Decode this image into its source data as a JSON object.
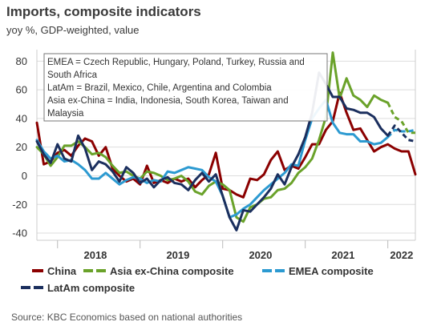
{
  "chart_data": {
    "type": "line",
    "title": "Imports, composite indicators",
    "subtitle": "yoy %, GDP-weighted, value",
    "source": "Source: KBC Economics based on national authorities",
    "ylim": [
      -45,
      88
    ],
    "yticks": [
      80,
      60,
      40,
      20,
      0,
      -20,
      -40
    ],
    "x_start": "2017-10",
    "x_end": "2022-05",
    "year_labels": [
      "2018",
      "2019",
      "2020",
      "2021",
      "2022"
    ],
    "grid": true,
    "legend_position": "bottom",
    "annotation_lines": [
      "EMEA = Czech Republic, Hungary, Poland, Turkey, Russia and",
      "South Africa",
      "LatAm = Brazil, Mexico, Chile, Argentina and Colombia",
      "Asia ex-China = India, Indonesia, South Korea, Taiwan and",
      "Malaysia"
    ],
    "series": [
      {
        "name": "China",
        "color": "#8b0000",
        "dash": "solid",
        "values": [
          37,
          8,
          10,
          16,
          18,
          14,
          21,
          26,
          24,
          14,
          20,
          5,
          0,
          -4,
          -2,
          -6,
          7,
          -5,
          -3,
          -5,
          -2,
          -4,
          -2,
          -8,
          -3,
          1,
          16,
          -9,
          -10,
          -13,
          -15,
          -2,
          -3,
          1,
          11,
          17,
          4,
          7,
          5,
          13,
          22,
          22,
          32,
          38,
          58,
          44,
          32,
          33,
          25,
          17,
          20,
          22,
          19,
          17,
          17,
          1
        ]
      },
      {
        "name": "Asia ex-China composite",
        "color": "#6aa22a",
        "dash": "dashed-end",
        "values": [
          20,
          15,
          7,
          13,
          21,
          21,
          24,
          20,
          15,
          16,
          13,
          7,
          2,
          3,
          0,
          -2,
          3,
          2,
          0,
          -3,
          -2,
          0,
          -4,
          -11,
          -13,
          -7,
          -4,
          -6,
          -10,
          -29,
          -32,
          -22,
          -20,
          -16,
          -15,
          -10,
          -9,
          -5,
          2,
          6,
          12,
          25,
          41,
          86,
          54,
          68,
          56,
          53,
          48,
          56,
          53,
          51,
          41,
          38,
          30,
          30
        ]
      },
      {
        "name": "EMEA composite",
        "color": "#2c9ad1",
        "dash": "dashed-end",
        "values": [
          25,
          17,
          12,
          14,
          10,
          11,
          8,
          4,
          -2,
          -2,
          2,
          -2,
          -6,
          -3,
          -1,
          -2,
          -5,
          -3,
          -4,
          3,
          2,
          4,
          6,
          5,
          4,
          -1,
          -4,
          -14,
          -29,
          -27,
          -23,
          -20,
          -15,
          -10,
          -6,
          -2,
          2,
          8,
          7,
          25,
          40,
          47,
          53,
          37,
          30,
          29,
          29,
          24,
          24,
          22,
          23,
          27,
          32,
          31,
          31,
          32
        ]
      },
      {
        "name": "LatAm composite",
        "color": "#1b2f5e",
        "dash": "dashed-end",
        "values": [
          24,
          15,
          9,
          22,
          12,
          10,
          28,
          19,
          4,
          10,
          8,
          3,
          -4,
          6,
          2,
          -5,
          -2,
          -8,
          -3,
          -1,
          -5,
          -6,
          -10,
          -3,
          2,
          -4,
          1,
          -14,
          -29,
          -38,
          -24,
          -25,
          -20,
          -15,
          -9,
          1,
          -6,
          6,
          15,
          27,
          44,
          72,
          64,
          55,
          55,
          47,
          46,
          44,
          44,
          41,
          33,
          28,
          35,
          30,
          25,
          24
        ]
      }
    ]
  }
}
